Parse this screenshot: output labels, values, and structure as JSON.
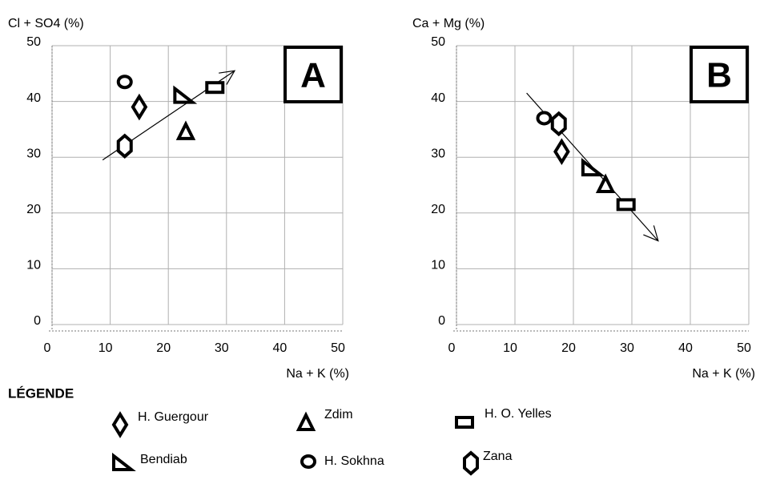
{
  "legend_title": "LÉGENDE",
  "chart_data": [
    {
      "type": "scatter",
      "panel_label": "A",
      "y_label": "Cl + SO4 (%)",
      "x_label": "Na + K (%)",
      "xlim": [
        0,
        50
      ],
      "ylim": [
        0,
        50
      ],
      "xticks": [
        0,
        10,
        20,
        30,
        40,
        50
      ],
      "yticks": [
        0,
        10,
        20,
        30,
        40,
        50
      ],
      "grid": true,
      "series": [
        {
          "name": "H. Guergour",
          "marker": "diamond",
          "color": "#000000",
          "x": [
            15
          ],
          "y": [
            39
          ]
        },
        {
          "name": "Zdim",
          "marker": "triangle",
          "color": "#000000",
          "x": [
            23
          ],
          "y": [
            34.5
          ]
        },
        {
          "name": "H. O. Yelles",
          "marker": "square",
          "color": "#000000",
          "x": [
            28
          ],
          "y": [
            42.5
          ]
        },
        {
          "name": "Bendiab",
          "marker": "right-triangle",
          "color": "#000000",
          "x": [
            22.5
          ],
          "y": [
            41
          ]
        },
        {
          "name": "H. Sokhna",
          "marker": "circle",
          "color": "#000000",
          "x": [
            12.5
          ],
          "y": [
            43.5
          ]
        },
        {
          "name": "Zana",
          "marker": "hexagon",
          "color": "#000000",
          "x": [
            12.5
          ],
          "y": [
            32
          ]
        }
      ],
      "trend": {
        "x": [
          8.7,
          31.4
        ],
        "y": [
          29.5,
          45.5
        ]
      }
    },
    {
      "type": "scatter",
      "panel_label": "B",
      "y_label": "Ca + Mg (%)",
      "x_label": "Na + K (%)",
      "xlim": [
        0,
        50
      ],
      "ylim": [
        0,
        50
      ],
      "xticks": [
        0,
        10,
        20,
        30,
        40,
        50
      ],
      "yticks": [
        0,
        10,
        20,
        30,
        40,
        50
      ],
      "grid": true,
      "series": [
        {
          "marker": "diamond",
          "color": "#000000",
          "x": [
            18
          ],
          "y": [
            31
          ]
        },
        {
          "marker": "triangle",
          "color": "#000000",
          "x": [
            25.5
          ],
          "y": [
            25
          ]
        },
        {
          "marker": "square",
          "color": "#000000",
          "x": [
            29
          ],
          "y": [
            21.5
          ]
        },
        {
          "marker": "right-triangle",
          "color": "#000000",
          "x": [
            23
          ],
          "y": [
            28
          ]
        },
        {
          "marker": "circle",
          "color": "#000000",
          "x": [
            15
          ],
          "y": [
            37
          ]
        },
        {
          "marker": "hexagon",
          "color": "#000000",
          "x": [
            17.5
          ],
          "y": [
            36
          ]
        }
      ],
      "trend": {
        "x": [
          12,
          34.5
        ],
        "y": [
          41.5,
          15
        ]
      }
    }
  ]
}
